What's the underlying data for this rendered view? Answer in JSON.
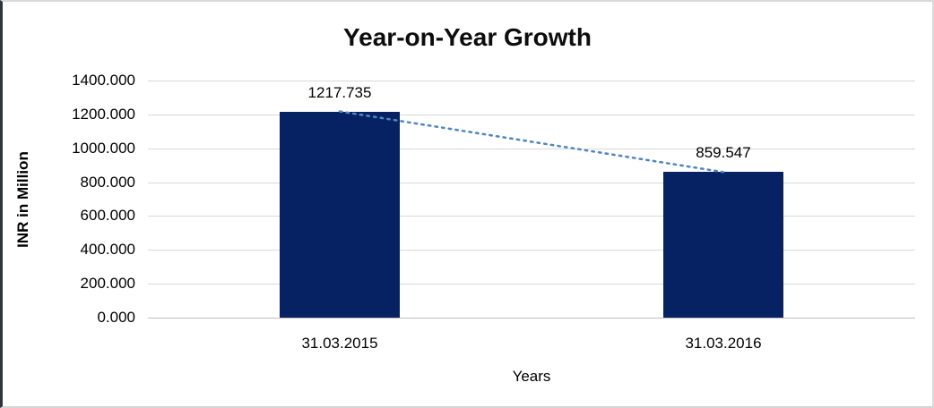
{
  "window": {
    "background": "#ffffff",
    "frame_border_color": "#d9d9d9",
    "frame_left_edge_color": "#2e3340"
  },
  "chart_data": {
    "type": "bar",
    "title": "Year-on-Year Growth",
    "categories": [
      "31.03.2015",
      "31.03.2016"
    ],
    "values": [
      1217.735,
      859.547
    ],
    "data_labels": [
      "1217.735",
      "859.547"
    ],
    "xlabel": "Years",
    "ylabel": "INR in Million",
    "ylim": [
      0,
      1400
    ],
    "ytick_step": 200,
    "ytick_labels": [
      "0.000",
      "200.000",
      "400.000",
      "600.000",
      "800.000",
      "1000.000",
      "1200.000",
      "1400.000"
    ],
    "grid": true,
    "legend": "none",
    "bar_color": "#062263",
    "gridline_color": "#d9d9d9",
    "axis_line_color": "#bfbfbf",
    "trendline": {
      "style": "dotted",
      "color": "#4e86c6",
      "connects": [
        "31.03.2015",
        "31.03.2016"
      ]
    }
  }
}
